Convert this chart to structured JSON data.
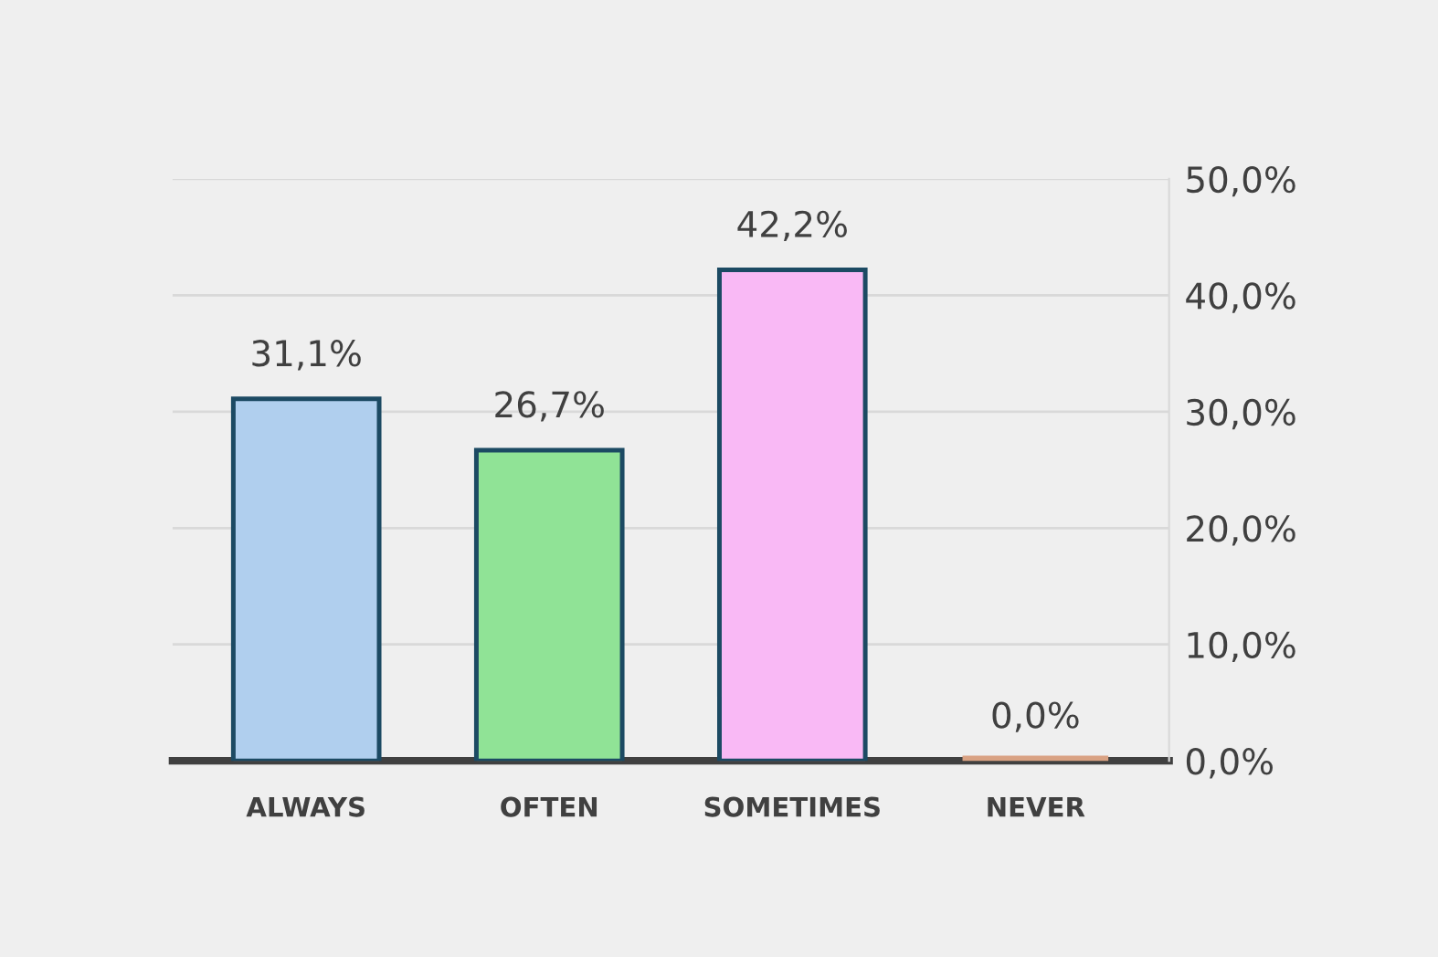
{
  "chart_data": {
    "type": "bar",
    "categories": [
      "ALWAYS",
      "OFTEN",
      "SOMETIMES",
      "NEVER"
    ],
    "values": [
      31.1,
      26.7,
      42.2,
      0.0
    ],
    "colors": [
      "#b0cfee",
      "#90e396",
      "#f9b9f5",
      "#d9a283"
    ],
    "value_labels": [
      "31,1%",
      "26,7%",
      "42,2%",
      "0,0%"
    ],
    "ylim": [
      0,
      50
    ],
    "yticks": [
      {
        "value": 0,
        "label": "0,0%"
      },
      {
        "value": 10,
        "label": "10,0%"
      },
      {
        "value": 20,
        "label": "20,0%"
      },
      {
        "value": 30,
        "label": "30,0%"
      },
      {
        "value": 40,
        "label": "40,0%"
      },
      {
        "value": 50,
        "label": "50,0%"
      }
    ],
    "grid": "y"
  }
}
